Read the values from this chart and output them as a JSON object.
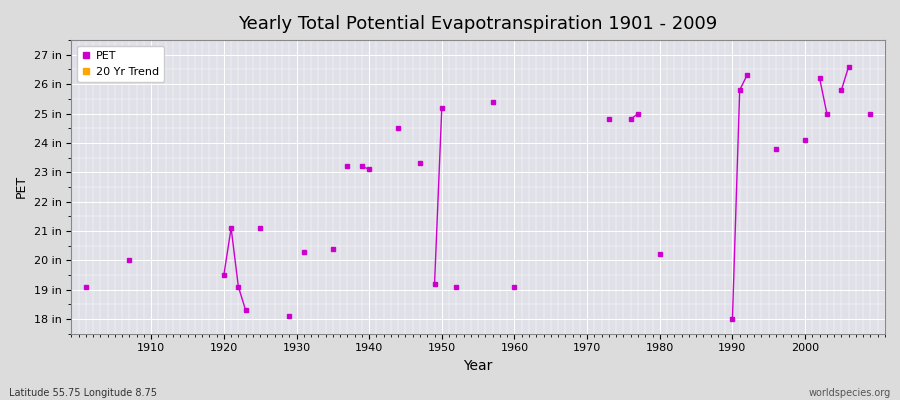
{
  "title": "Yearly Total Potential Evapotranspiration 1901 - 2009",
  "xlabel": "Year",
  "ylabel": "PET",
  "bottom_left_label": "Latitude 55.75 Longitude 8.75",
  "bottom_right_label": "worldspecies.org",
  "line_color": "#CC00CC",
  "trend_color": "#FFA500",
  "background_color": "#DCDCDC",
  "plot_bg_color": "#E0E0E8",
  "ylim": [
    17.5,
    27.5
  ],
  "xlim": [
    1899,
    2011
  ],
  "ytick_labels": [
    "18 in",
    "19 in",
    "20 in",
    "21 in",
    "22 in",
    "23 in",
    "24 in",
    "25 in",
    "26 in",
    "27 in"
  ],
  "ytick_values": [
    18,
    19,
    20,
    21,
    22,
    23,
    24,
    25,
    26,
    27
  ],
  "xtick_values": [
    1910,
    1920,
    1930,
    1940,
    1950,
    1960,
    1970,
    1980,
    1990,
    2000
  ],
  "years": [
    1901,
    1902,
    1903,
    1904,
    1905,
    1906,
    1907,
    1908,
    1909,
    1910,
    1911,
    1912,
    1913,
    1914,
    1915,
    1916,
    1917,
    1918,
    1919,
    1920,
    1921,
    1922,
    1923,
    1924,
    1925,
    1926,
    1927,
    1928,
    1929,
    1930,
    1931,
    1932,
    1933,
    1934,
    1935,
    1936,
    1937,
    1938,
    1939,
    1940,
    1941,
    1942,
    1943,
    1944,
    1945,
    1946,
    1947,
    1948,
    1949,
    1950,
    1951,
    1952,
    1953,
    1954,
    1955,
    1956,
    1957,
    1958,
    1959,
    1960,
    1961,
    1962,
    1963,
    1964,
    1965,
    1966,
    1967,
    1968,
    1969,
    1970,
    1971,
    1972,
    1973,
    1974,
    1975,
    1976,
    1977,
    1978,
    1979,
    1980,
    1981,
    1982,
    1983,
    1984,
    1985,
    1986,
    1987,
    1988,
    1989,
    1990,
    1991,
    1992,
    1993,
    1994,
    1995,
    1996,
    1997,
    1998,
    1999,
    2000,
    2001,
    2002,
    2003,
    2004,
    2005,
    2006,
    2007,
    2008,
    2009
  ],
  "pet_values": [
    19.1,
    null,
    null,
    null,
    null,
    null,
    20.0,
    null,
    null,
    null,
    null,
    null,
    null,
    null,
    null,
    null,
    null,
    null,
    null,
    19.5,
    21.1,
    19.1,
    18.3,
    null,
    21.1,
    null,
    null,
    null,
    18.1,
    null,
    20.3,
    null,
    null,
    null,
    20.4,
    null,
    23.2,
    null,
    23.2,
    23.1,
    null,
    null,
    null,
    24.5,
    null,
    null,
    23.3,
    null,
    19.2,
    25.2,
    null,
    19.1,
    null,
    null,
    null,
    null,
    25.4,
    null,
    null,
    19.1,
    null,
    null,
    null,
    null,
    null,
    null,
    null,
    null,
    null,
    null,
    null,
    null,
    24.8,
    null,
    null,
    24.8,
    25.0,
    null,
    null,
    20.2,
    null,
    null,
    null,
    null,
    null,
    null,
    null,
    null,
    null,
    18.0,
    25.8,
    26.3,
    null,
    null,
    null,
    23.8,
    null,
    null,
    null,
    24.1,
    null,
    26.2,
    25.0,
    null,
    25.8,
    26.6,
    null,
    null,
    25.0
  ]
}
